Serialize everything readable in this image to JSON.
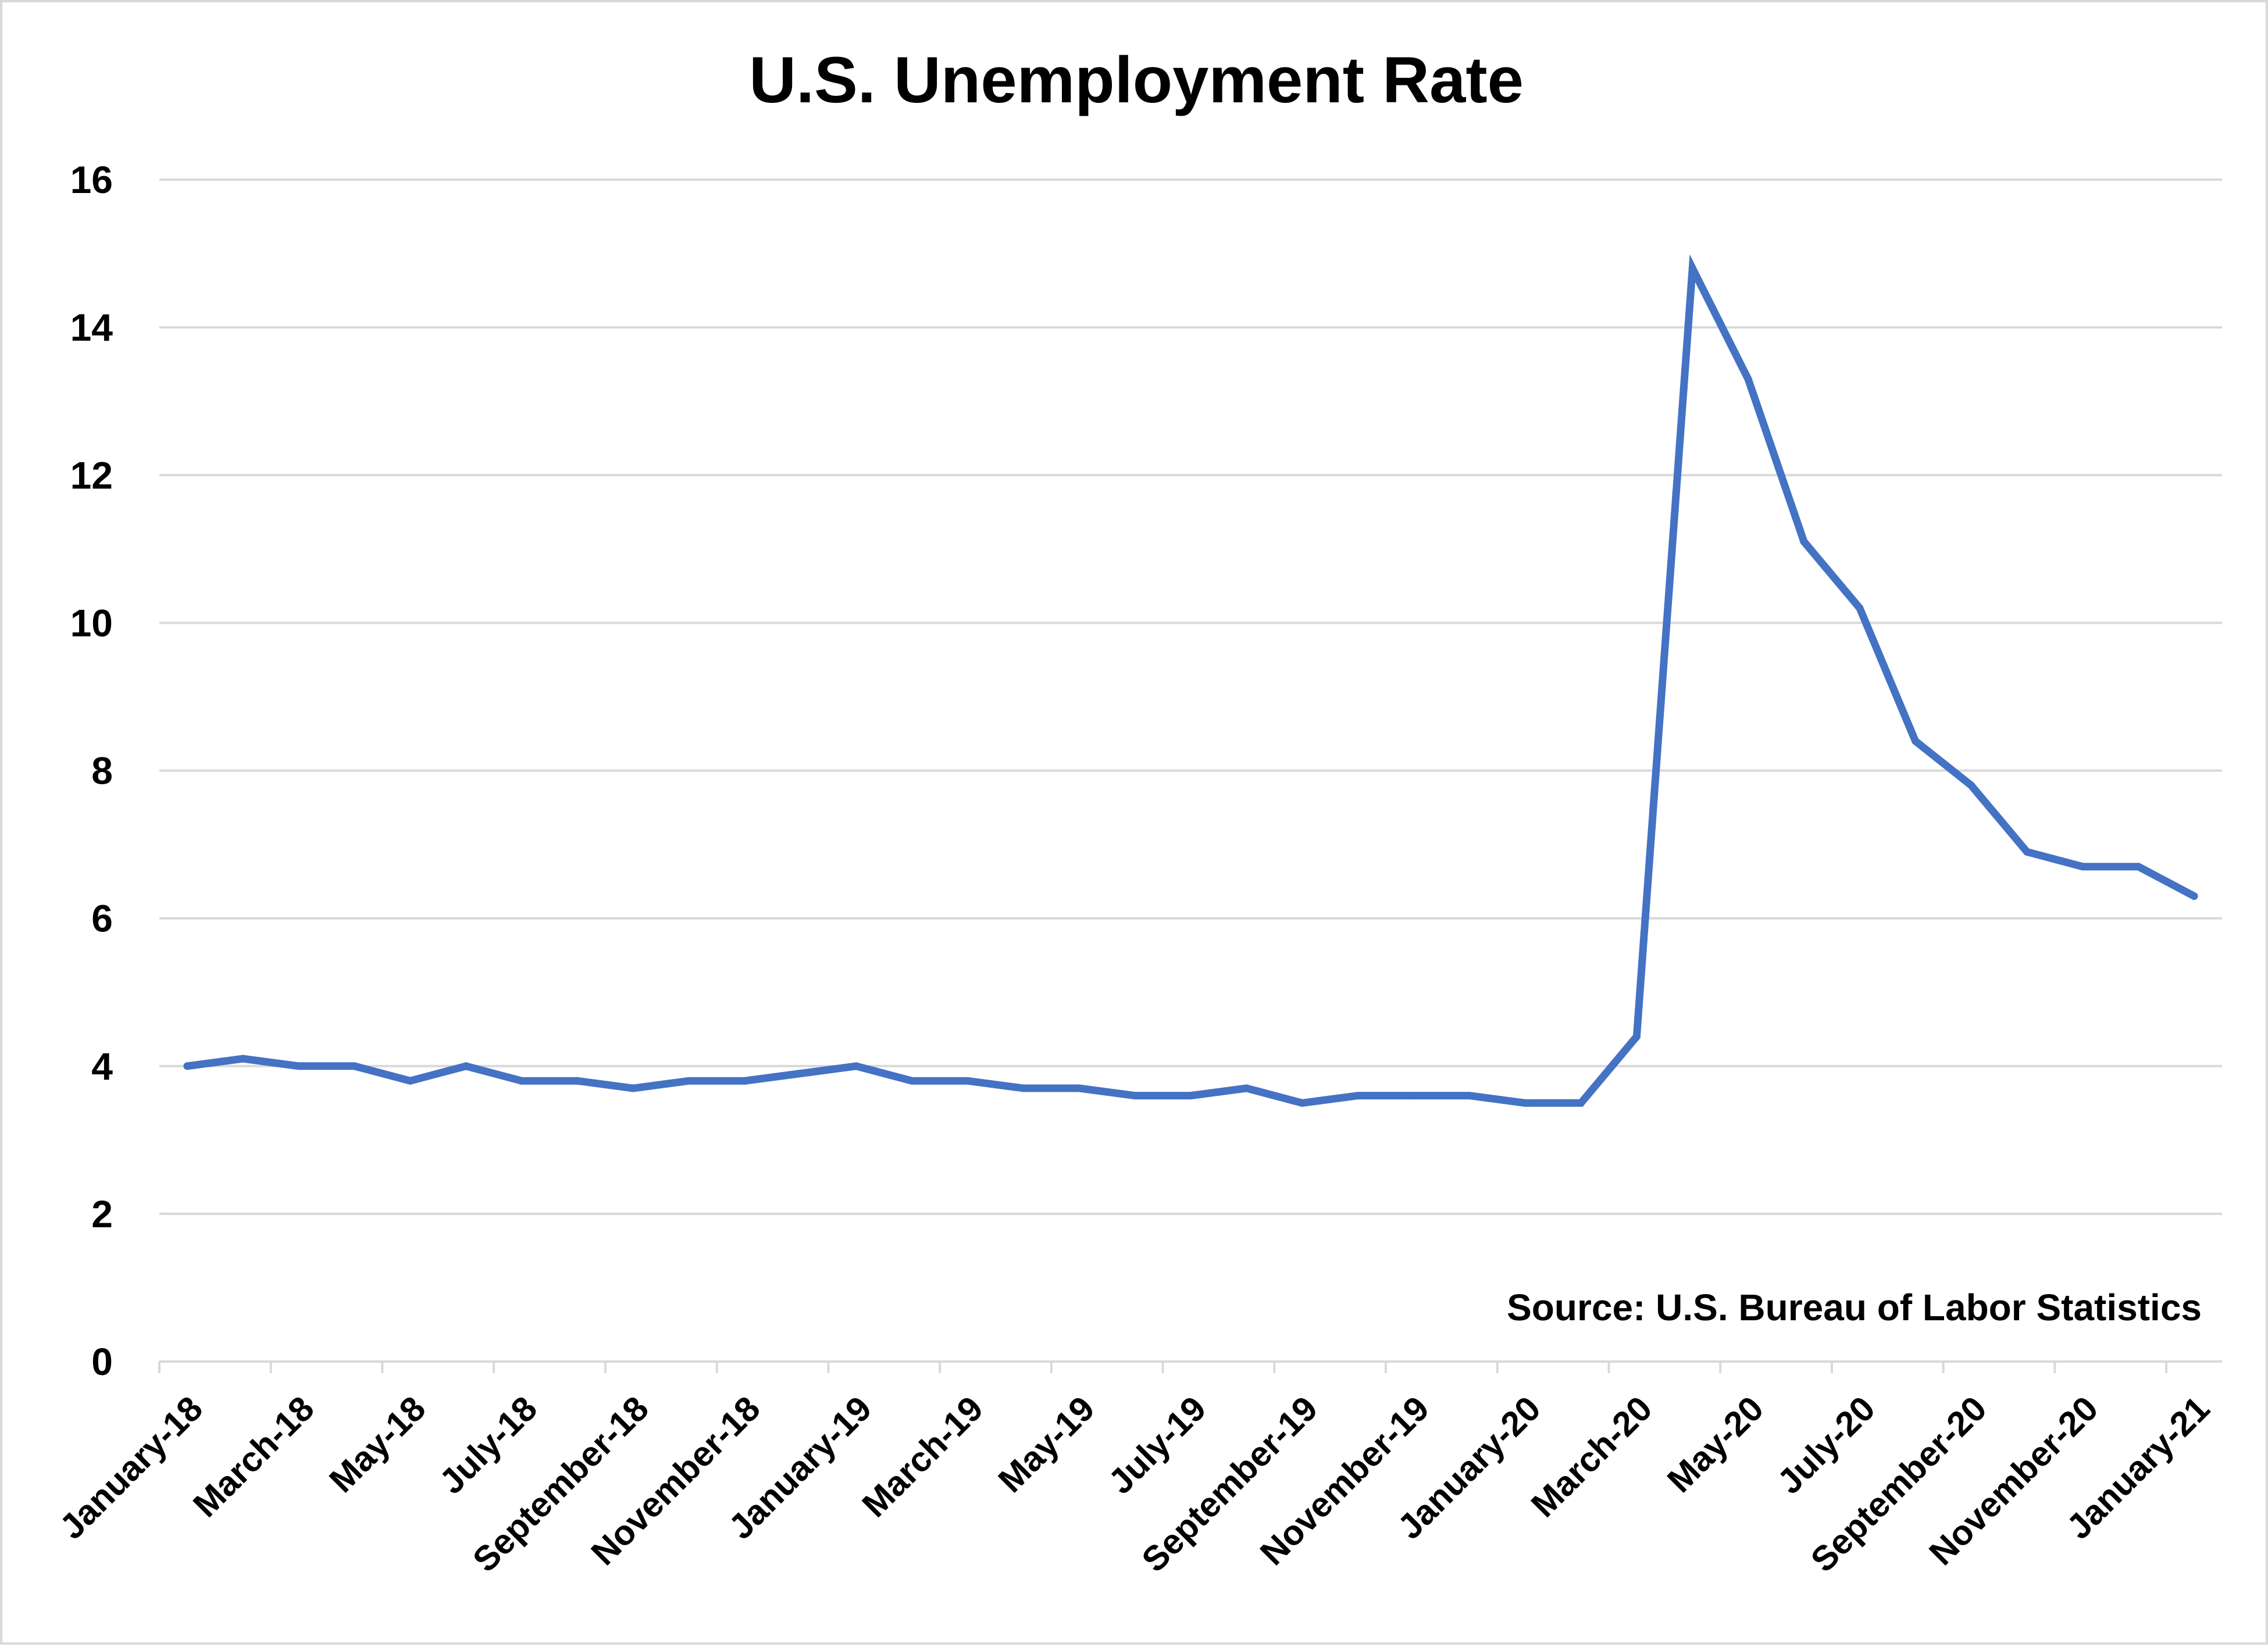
{
  "chart_data": {
    "type": "line",
    "title": "U.S. Unemployment Rate",
    "annotation": "Source: U.S. Bureau of Labor Statistics",
    "ylim": [
      0,
      16
    ],
    "yticks": [
      0,
      2,
      4,
      6,
      8,
      10,
      12,
      14,
      16
    ],
    "grid": true,
    "legend": "none",
    "line_color": "#4472C4",
    "grid_color": "#d9d9d9",
    "x": [
      "January-18",
      "February-18",
      "March-18",
      "April-18",
      "May-18",
      "June-18",
      "July-18",
      "August-18",
      "September-18",
      "October-18",
      "November-18",
      "December-18",
      "January-19",
      "February-19",
      "March-19",
      "April-19",
      "May-19",
      "June-19",
      "July-19",
      "August-19",
      "September-19",
      "October-19",
      "November-19",
      "December-19",
      "January-20",
      "February-20",
      "March-20",
      "April-20",
      "May-20",
      "June-20",
      "July-20",
      "August-20",
      "September-20",
      "October-20",
      "November-20",
      "December-20",
      "January-21"
    ],
    "x_tick_labels": [
      "January-18",
      "March-18",
      "May-18",
      "July-18",
      "September-18",
      "November-18",
      "January-19",
      "March-19",
      "May-19",
      "July-19",
      "September-19",
      "November-19",
      "January-20",
      "March-20",
      "May-20",
      "July-20",
      "September-20",
      "November-20",
      "January-21"
    ],
    "series": [
      {
        "values": [
          4.0,
          4.1,
          4.0,
          4.0,
          3.8,
          4.0,
          3.8,
          3.8,
          3.7,
          3.8,
          3.8,
          3.9,
          4.0,
          3.8,
          3.8,
          3.7,
          3.7,
          3.6,
          3.6,
          3.7,
          3.5,
          3.6,
          3.6,
          3.6,
          3.5,
          3.5,
          4.4,
          14.8,
          13.3,
          11.1,
          10.2,
          8.4,
          7.8,
          6.9,
          6.7,
          6.7,
          6.3
        ]
      }
    ]
  }
}
